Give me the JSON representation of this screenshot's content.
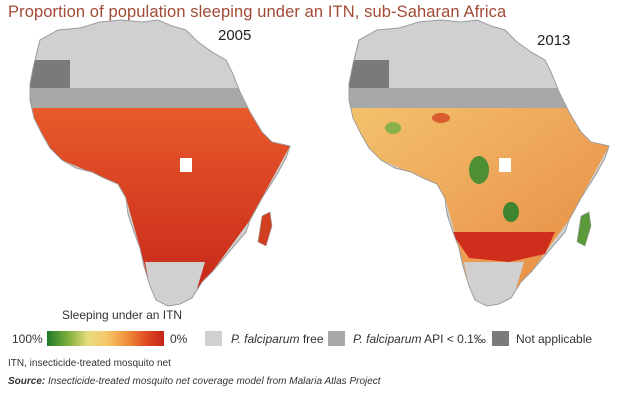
{
  "title": "Proportion of population sleeping under an ITN, sub-Saharan Africa",
  "maps": [
    {
      "year": "2005"
    },
    {
      "year": "2013"
    }
  ],
  "legend": {
    "title": "Sleeping under an ITN",
    "max_label": "100%",
    "min_label": "0%",
    "gradient_colors": [
      "#1f7a2a",
      "#e6dc7c",
      "#f0913c",
      "#c6241a"
    ],
    "pf_free_italic": "P. falciparum",
    "pf_free_rest": " free",
    "pf_api_italic": "P. falciparum",
    "pf_api_rest": " API < 0.1‰",
    "not_applicable": "Not applicable",
    "colors": {
      "pf_free": "#d0d0d0",
      "pf_api": "#a8a8a8",
      "not_applicable": "#7a7a7a"
    }
  },
  "footnote": "ITN, insecticide-treated mosquito net",
  "source_label": "Source:",
  "source_text": " Insecticide-treated mosquito net coverage model from Malaria Atlas Project"
}
